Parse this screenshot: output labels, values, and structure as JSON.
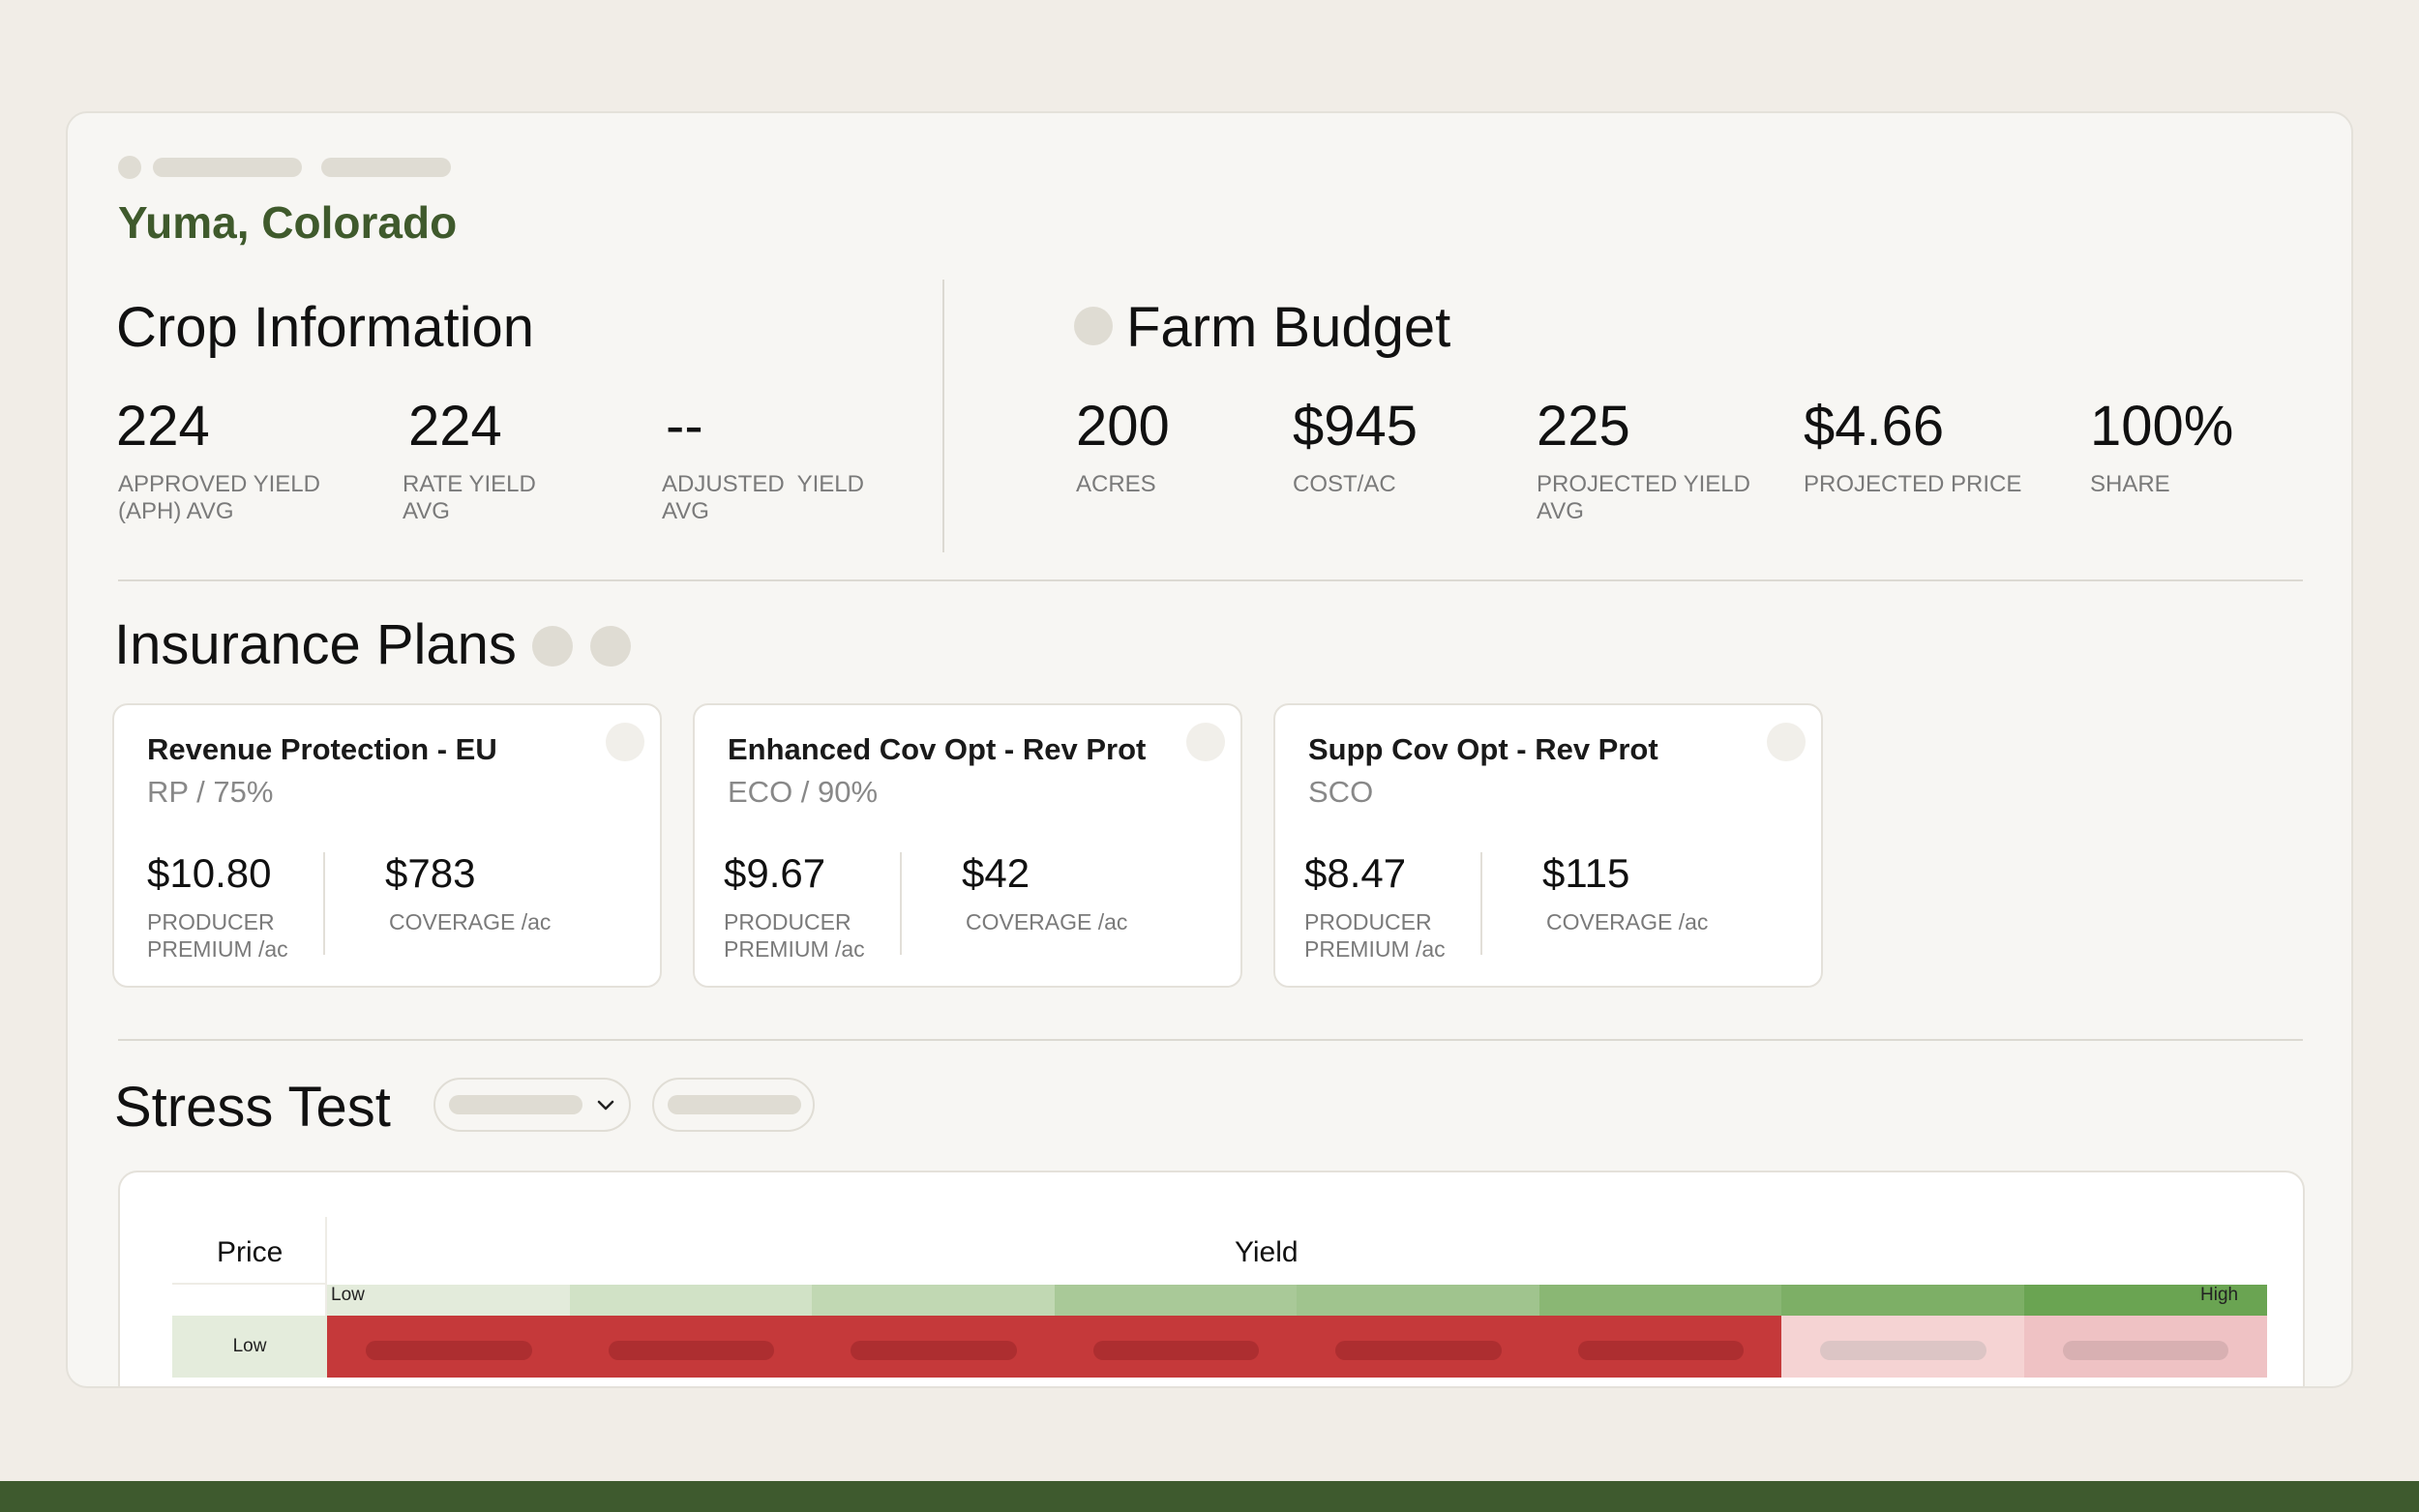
{
  "location": "Yuma, Colorado",
  "crop_info": {
    "title": "Crop Information",
    "stats": [
      {
        "value": "224",
        "label": "APPROVED YIELD (APH) AVG"
      },
      {
        "value": "224",
        "label": "RATE YIELD AVG"
      },
      {
        "value": "--",
        "label": "ADJUSTED  YIELD AVG"
      }
    ]
  },
  "farm_budget": {
    "title": "Farm Budget",
    "stats": [
      {
        "value": "200",
        "label": "ACRES"
      },
      {
        "value": "$945",
        "label": "COST/AC"
      },
      {
        "value": "225",
        "label": "PROJECTED YIELD AVG"
      },
      {
        "value": "$4.66",
        "label": "PROJECTED PRICE"
      },
      {
        "value": "100%",
        "label": "SHARE"
      }
    ]
  },
  "insurance": {
    "title": "Insurance Plans",
    "plans": [
      {
        "title": "Revenue Protection - EU",
        "sub": "RP / 75%",
        "premium": "$10.80",
        "premium_label": "PRODUCER PREMIUM /ac",
        "coverage": "$783",
        "coverage_label": "COVERAGE /ac"
      },
      {
        "title": "Enhanced Cov Opt - Rev Prot",
        "sub": "ECO / 90%",
        "premium": "$9.67",
        "premium_label": "PRODUCER PREMIUM /ac",
        "coverage": "$42",
        "coverage_label": "COVERAGE /ac"
      },
      {
        "title": "Supp Cov Opt - Rev Prot",
        "sub": "SCO",
        "premium": "$8.47",
        "premium_label": "PRODUCER PREMIUM /ac",
        "coverage": "$115",
        "coverage_label": "COVERAGE /ac"
      }
    ]
  },
  "stress_test": {
    "title": "Stress Test",
    "price_header": "Price",
    "yield_header": "Yield",
    "yield_low": "Low",
    "yield_high": "High",
    "price_low": "Low",
    "yield_band_colors": [
      "#e3ebdb",
      "#d1e2c6",
      "#c1d8b3",
      "#a9c998",
      "#a0c48e",
      "#8ab774",
      "#7daf66",
      "#6aa452"
    ],
    "row_colors": [
      "#c5393a",
      "#c5393a",
      "#c5393a",
      "#c5393a",
      "#c5393a",
      "#c5393a",
      "#f5d3d3",
      "#efc2c4"
    ],
    "row_bar_colors": [
      "#ad2e30",
      "#ad2e30",
      "#ad2e30",
      "#ad2e30",
      "#ad2e30",
      "#ad2e30",
      "#dcc5c5",
      "#d8b0b2"
    ]
  }
}
